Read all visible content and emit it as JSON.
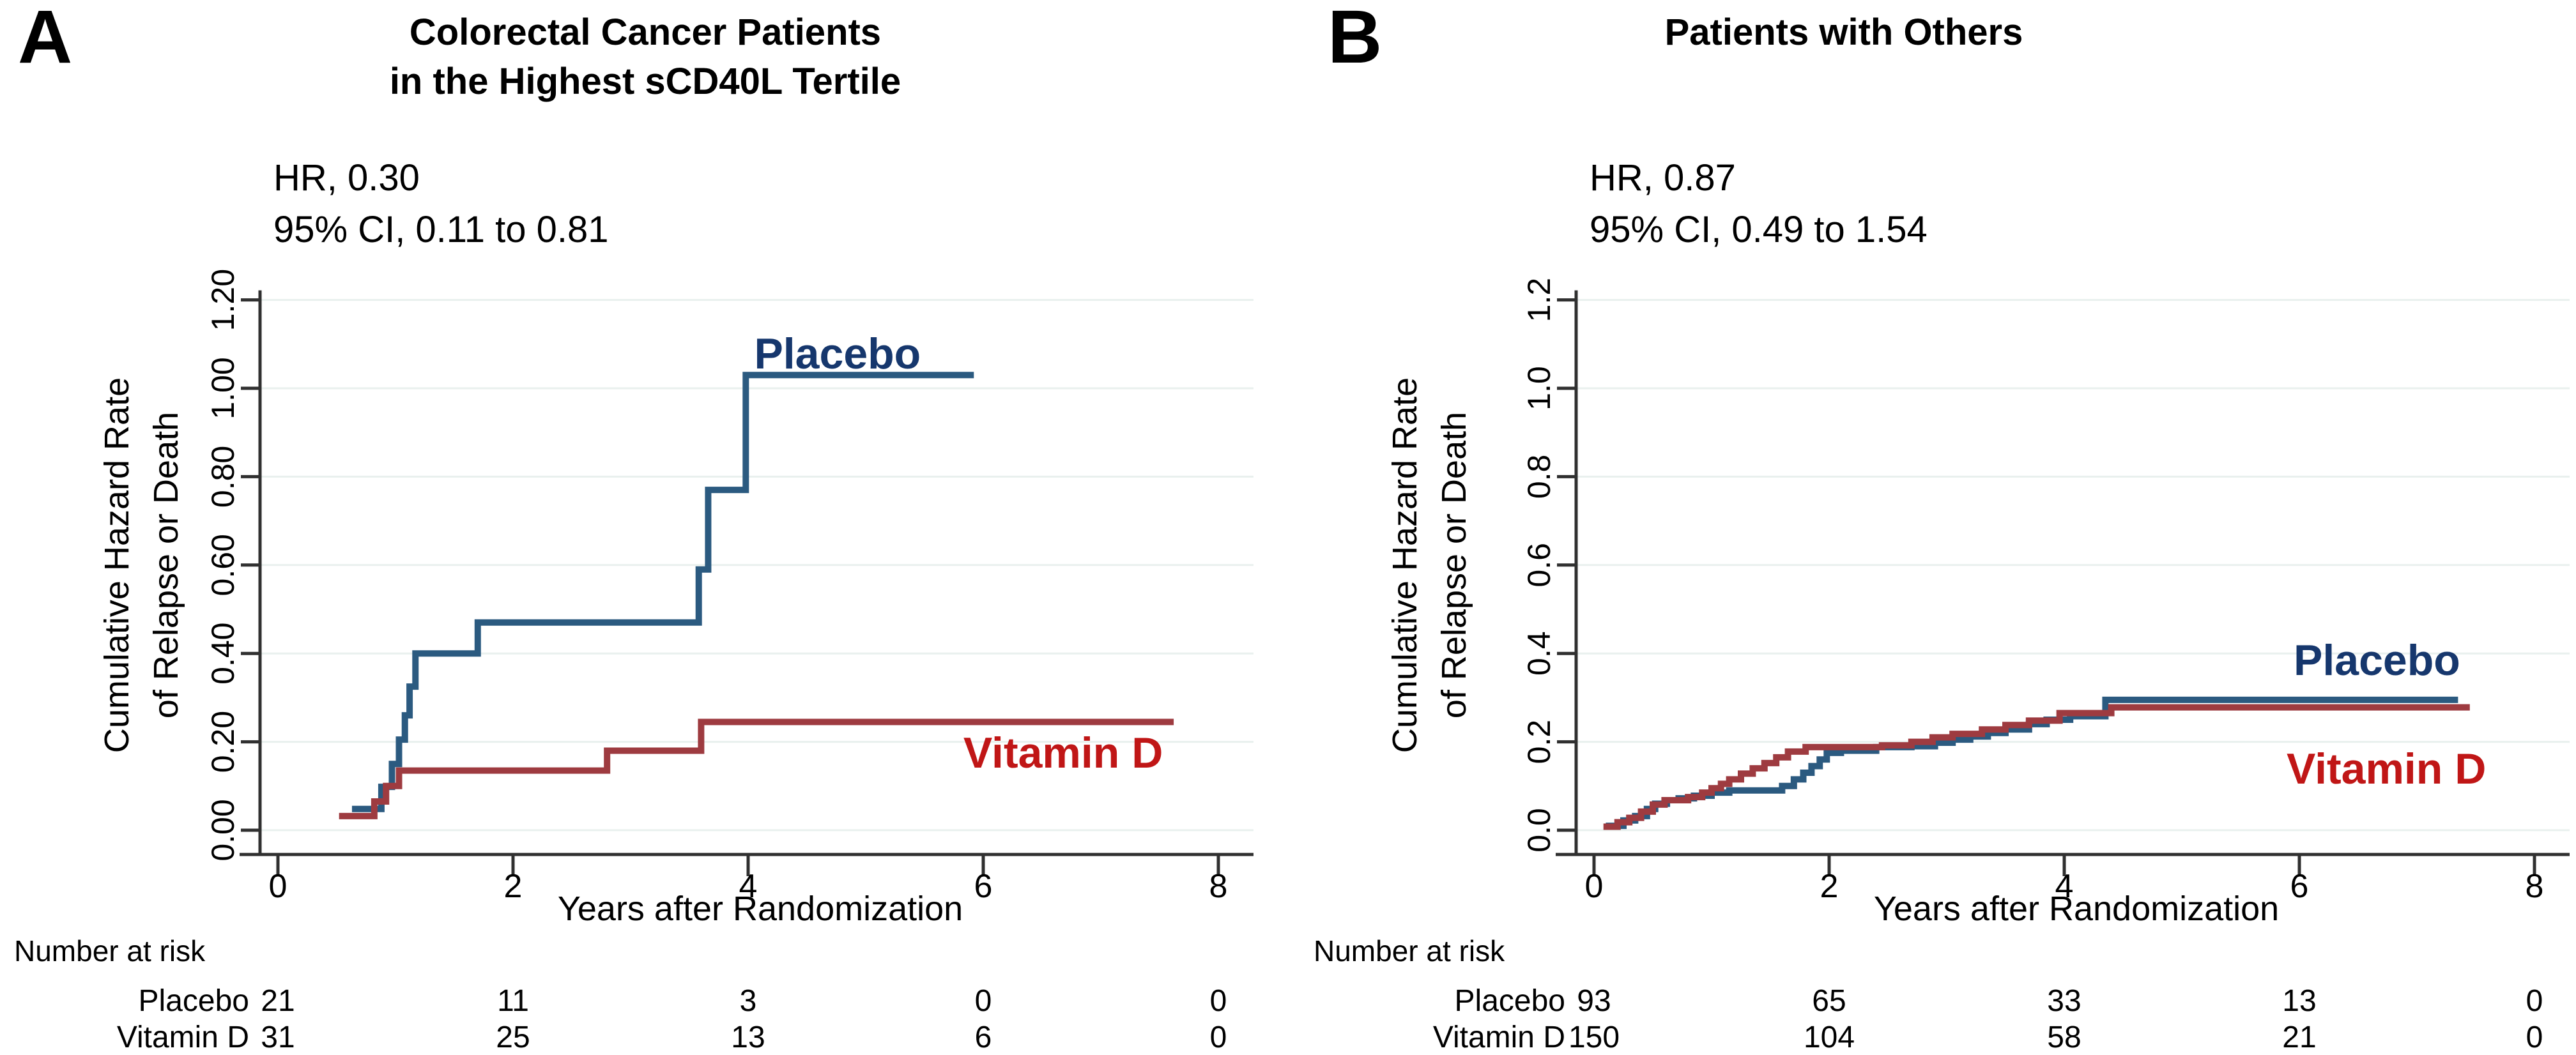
{
  "figure": {
    "background": "#ffffff",
    "axis_color": "#303030",
    "grid_color": "#e9f0ee",
    "text_color": "#000000"
  },
  "chart_data": [
    {
      "type": "line",
      "subtype": "step-survival",
      "panel_letter": "A",
      "title_lines": [
        "Colorectal Cancer Patients",
        "in the Highest sCD40L Tertile"
      ],
      "annotation_lines": [
        "HR, 0.30",
        "95% CI, 0.11 to 0.81"
      ],
      "ylabel_lines": [
        "Cumulative Hazard Rate",
        "of Relapse or Death"
      ],
      "xlabel": "Years after Randomization",
      "risk_title": "Number at risk",
      "xlim": [
        0,
        8
      ],
      "ylim": [
        0,
        1.2
      ],
      "xticks": [
        0,
        2,
        4,
        6,
        8
      ],
      "xtick_labels": [
        "0",
        "2",
        "4",
        "6",
        "8"
      ],
      "ytick_labels": [
        "0.00",
        "0.20",
        "0.40",
        "0.60",
        "0.80",
        "1.00",
        "1.20"
      ],
      "grid": "horizontal",
      "legend_position": "inline-labels",
      "series": [
        {
          "name": "Placebo",
          "color": "#2b5a80",
          "label_color": "#16376d",
          "points": [
            [
              0.63,
              0.048
            ],
            [
              0.88,
              0.098
            ],
            [
              0.97,
              0.15
            ],
            [
              1.03,
              0.205
            ],
            [
              1.08,
              0.26
            ],
            [
              1.12,
              0.325
            ],
            [
              1.17,
              0.4
            ],
            [
              1.7,
              0.47
            ],
            [
              3.58,
              0.59
            ],
            [
              3.66,
              0.77
            ],
            [
              3.98,
              1.03
            ],
            [
              5.92,
              1.03
            ]
          ],
          "label_pos": [
            4.76,
            1.07
          ],
          "risk_counts": [
            21,
            11,
            3,
            0,
            0
          ]
        },
        {
          "name": "Vitamin D",
          "color": "#9e3b40",
          "label_color": "#c01616",
          "points": [
            [
              0.52,
              0.032
            ],
            [
              0.82,
              0.065
            ],
            [
              0.92,
              0.1
            ],
            [
              1.03,
              0.135
            ],
            [
              2.8,
              0.18
            ],
            [
              3.6,
              0.245
            ],
            [
              7.62,
              0.245
            ]
          ],
          "label_pos": [
            6.68,
            0.166
          ],
          "risk_counts": [
            31,
            25,
            13,
            6,
            0
          ]
        }
      ]
    },
    {
      "type": "line",
      "subtype": "step-survival",
      "panel_letter": "B",
      "title_lines": [
        "Patients with Others"
      ],
      "annotation_lines": [
        "HR, 0.87",
        "95% CI, 0.49 to 1.54"
      ],
      "ylabel_lines": [
        "Cumulative Hazard Rate",
        "of Relapse or Death"
      ],
      "xlabel": "Years after Randomization",
      "risk_title": "Number at risk",
      "xlim": [
        0,
        8
      ],
      "ylim": [
        0,
        1.2
      ],
      "xticks": [
        0,
        2,
        4,
        6,
        8
      ],
      "xtick_labels": [
        "0",
        "2",
        "4",
        "6",
        "8"
      ],
      "ytick_labels": [
        "0.0",
        "0.2",
        "0.4",
        "0.6",
        "0.8",
        "1.0",
        "1.2"
      ],
      "grid": "horizontal",
      "legend_position": "inline-labels",
      "series": [
        {
          "name": "Placebo",
          "color": "#2b5a80",
          "label_color": "#16376d",
          "points": [
            [
              0.1,
              0.01
            ],
            [
              0.25,
              0.022
            ],
            [
              0.35,
              0.032
            ],
            [
              0.45,
              0.048
            ],
            [
              0.52,
              0.06
            ],
            [
              0.62,
              0.068
            ],
            [
              0.72,
              0.072
            ],
            [
              0.85,
              0.078
            ],
            [
              1.0,
              0.085
            ],
            [
              1.15,
              0.09
            ],
            [
              1.6,
              0.1
            ],
            [
              1.7,
              0.115
            ],
            [
              1.78,
              0.13
            ],
            [
              1.85,
              0.145
            ],
            [
              1.92,
              0.16
            ],
            [
              1.98,
              0.175
            ],
            [
              2.1,
              0.18
            ],
            [
              2.4,
              0.188
            ],
            [
              2.7,
              0.19
            ],
            [
              2.9,
              0.198
            ],
            [
              3.05,
              0.205
            ],
            [
              3.2,
              0.212
            ],
            [
              3.35,
              0.22
            ],
            [
              3.5,
              0.228
            ],
            [
              3.7,
              0.24
            ],
            [
              3.85,
              0.25
            ],
            [
              4.05,
              0.258
            ],
            [
              4.35,
              0.295
            ],
            [
              7.35,
              0.295
            ]
          ],
          "label_pos": [
            6.66,
            0.376
          ],
          "risk_counts": [
            93,
            65,
            33,
            13,
            0
          ]
        },
        {
          "name": "Vitamin D",
          "color": "#9e3b40",
          "label_color": "#c01616",
          "points": [
            [
              0.08,
              0.008
            ],
            [
              0.2,
              0.018
            ],
            [
              0.3,
              0.028
            ],
            [
              0.4,
              0.042
            ],
            [
              0.5,
              0.058
            ],
            [
              0.6,
              0.068
            ],
            [
              0.8,
              0.075
            ],
            [
              0.92,
              0.085
            ],
            [
              1.0,
              0.095
            ],
            [
              1.08,
              0.105
            ],
            [
              1.15,
              0.115
            ],
            [
              1.25,
              0.128
            ],
            [
              1.35,
              0.14
            ],
            [
              1.45,
              0.152
            ],
            [
              1.55,
              0.165
            ],
            [
              1.65,
              0.178
            ],
            [
              1.8,
              0.188
            ],
            [
              2.45,
              0.192
            ],
            [
              2.7,
              0.2
            ],
            [
              2.88,
              0.21
            ],
            [
              3.05,
              0.218
            ],
            [
              3.3,
              0.228
            ],
            [
              3.5,
              0.238
            ],
            [
              3.7,
              0.248
            ],
            [
              3.96,
              0.265
            ],
            [
              4.4,
              0.278
            ],
            [
              7.45,
              0.278
            ]
          ],
          "label_pos": [
            6.74,
            0.13
          ],
          "risk_counts": [
            150,
            104,
            58,
            21,
            0
          ]
        }
      ]
    }
  ]
}
